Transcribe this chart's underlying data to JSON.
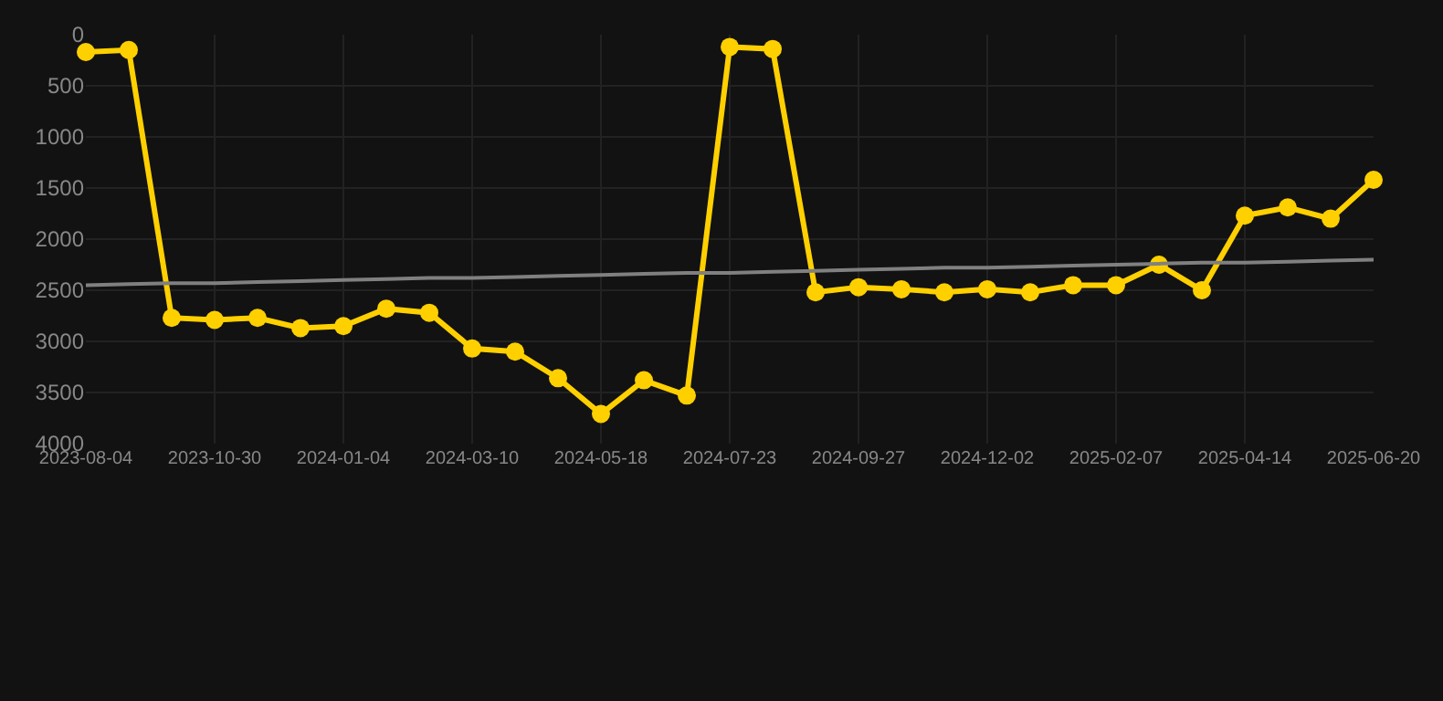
{
  "chart_data": {
    "type": "line",
    "categories": [
      "2023-08-04",
      null,
      null,
      "2023-10-30",
      null,
      null,
      "2024-01-04",
      null,
      null,
      "2024-03-10",
      null,
      null,
      "2024-05-18",
      null,
      null,
      "2024-07-23",
      null,
      null,
      "2024-09-27",
      null,
      null,
      "2024-12-02",
      null,
      null,
      "2025-02-07",
      null,
      null,
      "2025-04-14",
      null,
      null,
      "2025-06-20"
    ],
    "series": [
      {
        "color": "#ffd000",
        "marker": "circle",
        "values": [
          170,
          150,
          2770,
          2790,
          2770,
          2870,
          2850,
          2680,
          2720,
          3070,
          3100,
          3360,
          3710,
          3380,
          3530,
          120,
          140,
          2520,
          2470,
          2490,
          2520,
          2490,
          2520,
          2450,
          2450,
          2250,
          2500,
          1770,
          1690,
          1800,
          1420
        ]
      },
      {
        "type": "line",
        "color": "#808080",
        "marker": "none",
        "values": [
          2450,
          2440,
          2430,
          2430,
          2420,
          2410,
          2400,
          2390,
          2380,
          2380,
          2370,
          2360,
          2350,
          2340,
          2330,
          2330,
          2320,
          2310,
          2300,
          2290,
          2280,
          2280,
          2270,
          2260,
          2250,
          2240,
          2230,
          2230,
          2220,
          2210,
          2200
        ]
      }
    ],
    "ylim": [
      4000,
      0
    ],
    "yticks": [
      0,
      500,
      1000,
      1500,
      2000,
      2500,
      3000,
      3500,
      4000
    ],
    "grid": true
  }
}
